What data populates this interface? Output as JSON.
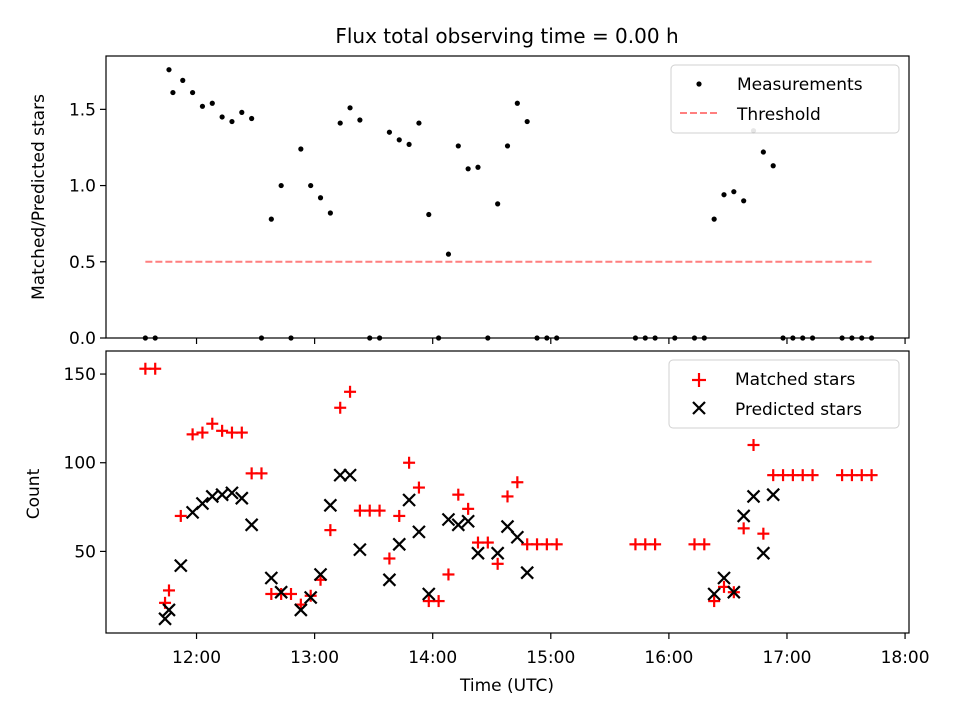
{
  "chart_data": [
    {
      "type": "scatter",
      "title": "Flux total observing time = 0.00 h",
      "ylabel": "Matched/Predicted stars",
      "xlabel": "",
      "xlim": [
        "11:14",
        "18:02"
      ],
      "ylim": [
        0,
        1.85
      ],
      "yticks": [
        0.0,
        0.5,
        1.0,
        1.5
      ],
      "ytick_labels": [
        "0.0",
        "0.5",
        "1.0",
        "1.5"
      ],
      "legend_position": "top-right",
      "series": [
        {
          "name": "Measurements",
          "style": "dot",
          "color": "#000000",
          "points": [
            [
              "11:34",
              0
            ],
            [
              "11:39",
              0
            ],
            [
              "11:46",
              1.76
            ],
            [
              "11:48",
              1.61
            ],
            [
              "11:53",
              1.69
            ],
            [
              "11:58",
              1.61
            ],
            [
              "12:03",
              1.52
            ],
            [
              "12:08",
              1.54
            ],
            [
              "12:13",
              1.45
            ],
            [
              "12:18",
              1.42
            ],
            [
              "12:23",
              1.48
            ],
            [
              "12:28",
              1.44
            ],
            [
              "12:33",
              0
            ],
            [
              "12:38",
              0.78
            ],
            [
              "12:43",
              1.0
            ],
            [
              "12:48",
              0
            ],
            [
              "12:53",
              1.24
            ],
            [
              "12:58",
              1.0
            ],
            [
              "13:03",
              0.92
            ],
            [
              "13:08",
              0.82
            ],
            [
              "13:13",
              1.41
            ],
            [
              "13:18",
              1.51
            ],
            [
              "13:23",
              1.43
            ],
            [
              "13:28",
              0
            ],
            [
              "13:33",
              0
            ],
            [
              "13:38",
              1.35
            ],
            [
              "13:43",
              1.3
            ],
            [
              "13:48",
              1.27
            ],
            [
              "13:53",
              1.41
            ],
            [
              "13:58",
              0.81
            ],
            [
              "14:03",
              0
            ],
            [
              "14:08",
              0.55
            ],
            [
              "14:13",
              1.26
            ],
            [
              "14:18",
              1.11
            ],
            [
              "14:23",
              1.12
            ],
            [
              "14:28",
              0
            ],
            [
              "14:33",
              0.88
            ],
            [
              "14:38",
              1.26
            ],
            [
              "14:43",
              1.54
            ],
            [
              "14:48",
              1.42
            ],
            [
              "14:53",
              0
            ],
            [
              "14:58",
              0
            ],
            [
              "15:03",
              0
            ],
            [
              "15:43",
              0
            ],
            [
              "15:48",
              0
            ],
            [
              "15:53",
              0
            ],
            [
              "16:03",
              0
            ],
            [
              "16:13",
              0
            ],
            [
              "16:18",
              0
            ],
            [
              "16:23",
              0.78
            ],
            [
              "16:28",
              0.94
            ],
            [
              "16:33",
              0.96
            ],
            [
              "16:38",
              0.9
            ],
            [
              "16:43",
              1.36
            ],
            [
              "16:48",
              1.22
            ],
            [
              "16:53",
              1.13
            ],
            [
              "16:58",
              0
            ],
            [
              "17:03",
              0
            ],
            [
              "17:08",
              0
            ],
            [
              "17:13",
              0
            ],
            [
              "17:28",
              0
            ],
            [
              "17:33",
              0
            ],
            [
              "17:38",
              0
            ],
            [
              "17:43",
              0
            ]
          ]
        },
        {
          "name": "Threshold",
          "style": "dashed-line",
          "color": "#ff7f7f",
          "points": [
            [
              "11:34",
              0.5
            ],
            [
              "17:43",
              0.5
            ]
          ]
        }
      ]
    },
    {
      "type": "scatter",
      "title": "",
      "xlabel": "Time (UTC)",
      "ylabel": "Count",
      "xlim": [
        "11:14",
        "18:02"
      ],
      "ylim": [
        4,
        163
      ],
      "xticks": [
        "12:00",
        "13:00",
        "14:00",
        "15:00",
        "16:00",
        "17:00",
        "18:00"
      ],
      "yticks": [
        50,
        100,
        150
      ],
      "ytick_labels": [
        "50",
        "100",
        "150"
      ],
      "legend_position": "top-right",
      "series": [
        {
          "name": "Matched stars",
          "marker": "+",
          "color": "#ff0000",
          "points": [
            [
              "11:34",
              153
            ],
            [
              "11:39",
              153
            ],
            [
              "11:44",
              21
            ],
            [
              "11:46",
              28
            ],
            [
              "11:52",
              70
            ],
            [
              "11:58",
              116
            ],
            [
              "12:03",
              117
            ],
            [
              "12:08",
              122
            ],
            [
              "12:13",
              118
            ],
            [
              "12:18",
              117
            ],
            [
              "12:23",
              117
            ],
            [
              "12:28",
              94
            ],
            [
              "12:33",
              94
            ],
            [
              "12:38",
              26
            ],
            [
              "12:43",
              26
            ],
            [
              "12:48",
              26
            ],
            [
              "12:53",
              20
            ],
            [
              "12:58",
              25
            ],
            [
              "13:03",
              34
            ],
            [
              "13:08",
              62
            ],
            [
              "13:13",
              131
            ],
            [
              "13:18",
              140
            ],
            [
              "13:23",
              73
            ],
            [
              "13:28",
              73
            ],
            [
              "13:33",
              73
            ],
            [
              "13:38",
              46
            ],
            [
              "13:43",
              70
            ],
            [
              "13:48",
              100
            ],
            [
              "13:53",
              86
            ],
            [
              "13:58",
              22
            ],
            [
              "14:03",
              22
            ],
            [
              "14:08",
              37
            ],
            [
              "14:13",
              82
            ],
            [
              "14:18",
              74
            ],
            [
              "14:23",
              55
            ],
            [
              "14:28",
              55
            ],
            [
              "14:33",
              43
            ],
            [
              "14:38",
              81
            ],
            [
              "14:43",
              89
            ],
            [
              "14:48",
              54
            ],
            [
              "14:53",
              54
            ],
            [
              "14:58",
              54
            ],
            [
              "15:03",
              54
            ],
            [
              "15:43",
              54
            ],
            [
              "15:48",
              54
            ],
            [
              "15:53",
              54
            ],
            [
              "16:13",
              54
            ],
            [
              "16:18",
              54
            ],
            [
              "16:23",
              22
            ],
            [
              "16:28",
              30
            ],
            [
              "16:33",
              27
            ],
            [
              "16:38",
              63
            ],
            [
              "16:43",
              110
            ],
            [
              "16:48",
              60
            ],
            [
              "16:53",
              93
            ],
            [
              "16:58",
              93
            ],
            [
              "17:03",
              93
            ],
            [
              "17:08",
              93
            ],
            [
              "17:13",
              93
            ],
            [
              "17:28",
              93
            ],
            [
              "17:33",
              93
            ],
            [
              "17:38",
              93
            ],
            [
              "17:43",
              93
            ]
          ]
        },
        {
          "name": "Predicted stars",
          "marker": "x",
          "color": "#000000",
          "points": [
            [
              "11:44",
              12
            ],
            [
              "11:46",
              17
            ],
            [
              "11:52",
              42
            ],
            [
              "11:58",
              72
            ],
            [
              "12:03",
              77
            ],
            [
              "12:08",
              81
            ],
            [
              "12:13",
              82
            ],
            [
              "12:18",
              83
            ],
            [
              "12:23",
              80
            ],
            [
              "12:28",
              65
            ],
            [
              "12:38",
              35
            ],
            [
              "12:43",
              27
            ],
            [
              "12:53",
              17
            ],
            [
              "12:58",
              24
            ],
            [
              "13:03",
              37
            ],
            [
              "13:08",
              76
            ],
            [
              "13:13",
              93
            ],
            [
              "13:18",
              93
            ],
            [
              "13:23",
              51
            ],
            [
              "13:38",
              34
            ],
            [
              "13:43",
              54
            ],
            [
              "13:48",
              79
            ],
            [
              "13:53",
              61
            ],
            [
              "13:58",
              26
            ],
            [
              "14:08",
              68
            ],
            [
              "14:13",
              65
            ],
            [
              "14:18",
              67
            ],
            [
              "14:23",
              49
            ],
            [
              "14:33",
              49
            ],
            [
              "14:38",
              64
            ],
            [
              "14:43",
              58
            ],
            [
              "14:48",
              38
            ],
            [
              "16:23",
              26
            ],
            [
              "16:28",
              35
            ],
            [
              "16:33",
              27
            ],
            [
              "16:38",
              70
            ],
            [
              "16:43",
              81
            ],
            [
              "16:48",
              49
            ],
            [
              "16:53",
              82
            ]
          ]
        }
      ]
    }
  ]
}
